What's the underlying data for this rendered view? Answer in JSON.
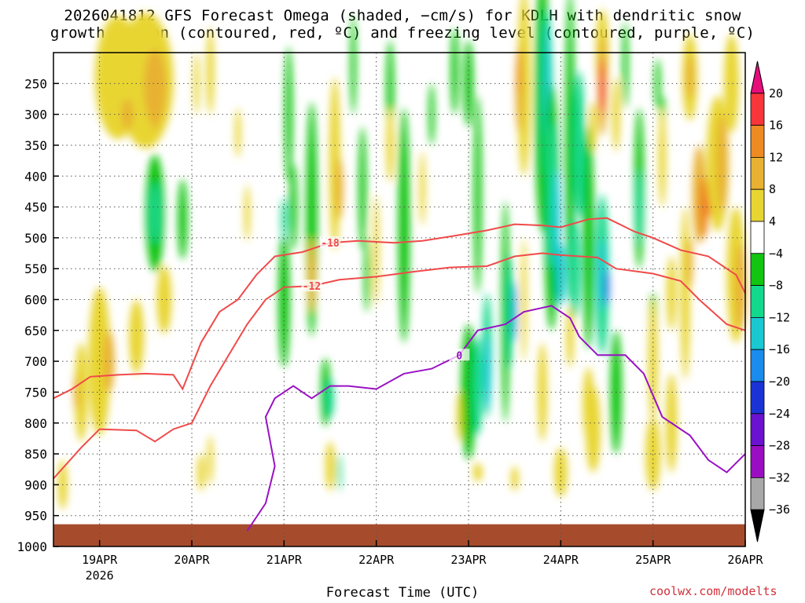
{
  "title_line1": "2026041812 GFS Forecast Omega (shaded, −cm/s) for KDLH with dendritic snow",
  "title_line2": "growth region (contoured, red, ºC) and freezing level (contoured, purple, ºC)",
  "xlabel": "Forecast Time (UTC)",
  "credit": "coolwx.com/modelts",
  "chart_data": {
    "type": "heatmap",
    "x_ticks": [
      {
        "label": "19APR",
        "sub": "2026",
        "day": 19
      },
      {
        "label": "20APR",
        "sub": "",
        "day": 20
      },
      {
        "label": "21APR",
        "sub": "",
        "day": 21
      },
      {
        "label": "22APR",
        "sub": "",
        "day": 22
      },
      {
        "label": "23APR",
        "sub": "",
        "day": 23
      },
      {
        "label": "24APR",
        "sub": "",
        "day": 24
      },
      {
        "label": "25APR",
        "sub": "",
        "day": 25
      },
      {
        "label": "26APR",
        "sub": "",
        "day": 26
      }
    ],
    "xlim": [
      18.5,
      26
    ],
    "y_ticks": [
      250,
      300,
      350,
      400,
      450,
      500,
      550,
      600,
      650,
      700,
      750,
      800,
      850,
      900,
      950,
      1000
    ],
    "ylim": [
      200,
      1000
    ],
    "colorbar_labels": [
      20,
      16,
      12,
      8,
      4,
      -4,
      -8,
      -12,
      -16,
      -20,
      -24,
      -28,
      -32,
      -36
    ],
    "colorbar_colors": [
      "#e60e7b",
      "#f8353b",
      "#ee8a22",
      "#e8b131",
      "#e8d532",
      "#ffffff",
      "#11c511",
      "#12d98c",
      "#19c9d1",
      "#198ced",
      "#1a33d7",
      "#6a12d0",
      "#9a0dc3",
      "#a8a8a8",
      "#000000"
    ],
    "contours": [
      {
        "label": "-18",
        "color": "#f04a4a",
        "points": [
          [
            18.5,
            760
          ],
          [
            18.7,
            745
          ],
          [
            18.9,
            725
          ],
          [
            19.2,
            722
          ],
          [
            19.5,
            720
          ],
          [
            19.8,
            722
          ],
          [
            19.9,
            745
          ],
          [
            20.1,
            670
          ],
          [
            20.3,
            620
          ],
          [
            20.5,
            600
          ],
          [
            20.7,
            560
          ],
          [
            20.9,
            530
          ],
          [
            21.2,
            523
          ],
          [
            21.5,
            508
          ],
          [
            21.8,
            505
          ],
          [
            22.2,
            508
          ],
          [
            22.5,
            505
          ],
          [
            22.8,
            498
          ],
          [
            23.2,
            488
          ],
          [
            23.5,
            478
          ],
          [
            23.8,
            480
          ],
          [
            24.0,
            483
          ],
          [
            24.3,
            470
          ],
          [
            24.5,
            468
          ],
          [
            24.8,
            490
          ],
          [
            25.0,
            500
          ],
          [
            25.3,
            520
          ],
          [
            25.6,
            530
          ],
          [
            25.9,
            560
          ],
          [
            26.0,
            590
          ]
        ]
      },
      {
        "label": "-12",
        "color": "#f04a4a",
        "points": [
          [
            18.5,
            890
          ],
          [
            18.8,
            840
          ],
          [
            19.0,
            810
          ],
          [
            19.4,
            812
          ],
          [
            19.6,
            830
          ],
          [
            19.8,
            810
          ],
          [
            20.0,
            800
          ],
          [
            20.2,
            740
          ],
          [
            20.4,
            690
          ],
          [
            20.6,
            640
          ],
          [
            20.8,
            600
          ],
          [
            21.0,
            580
          ],
          [
            21.3,
            578
          ],
          [
            21.6,
            568
          ],
          [
            22.0,
            563
          ],
          [
            22.4,
            555
          ],
          [
            22.8,
            548
          ],
          [
            23.2,
            546
          ],
          [
            23.5,
            530
          ],
          [
            23.8,
            525
          ],
          [
            24.0,
            528
          ],
          [
            24.4,
            532
          ],
          [
            24.6,
            550
          ],
          [
            25.0,
            558
          ],
          [
            25.3,
            570
          ],
          [
            25.5,
            600
          ],
          [
            25.8,
            640
          ],
          [
            26.0,
            650
          ]
        ]
      },
      {
        "label": "0",
        "color": "#9a11c4",
        "points": [
          [
            20.6,
            975
          ],
          [
            20.8,
            930
          ],
          [
            20.9,
            870
          ],
          [
            20.8,
            790
          ],
          [
            20.9,
            760
          ],
          [
            21.1,
            740
          ],
          [
            21.3,
            760
          ],
          [
            21.5,
            740
          ],
          [
            21.7,
            740
          ],
          [
            22.0,
            745
          ],
          [
            22.3,
            720
          ],
          [
            22.6,
            712
          ],
          [
            22.9,
            690
          ],
          [
            23.1,
            650
          ],
          [
            23.4,
            640
          ],
          [
            23.6,
            620
          ],
          [
            23.9,
            610
          ],
          [
            24.1,
            630
          ],
          [
            24.2,
            660
          ],
          [
            24.4,
            690
          ],
          [
            24.7,
            690
          ],
          [
            24.9,
            720
          ],
          [
            25.1,
            790
          ],
          [
            25.4,
            820
          ],
          [
            25.6,
            860
          ],
          [
            25.8,
            880
          ],
          [
            26.0,
            850
          ]
        ]
      }
    ]
  }
}
